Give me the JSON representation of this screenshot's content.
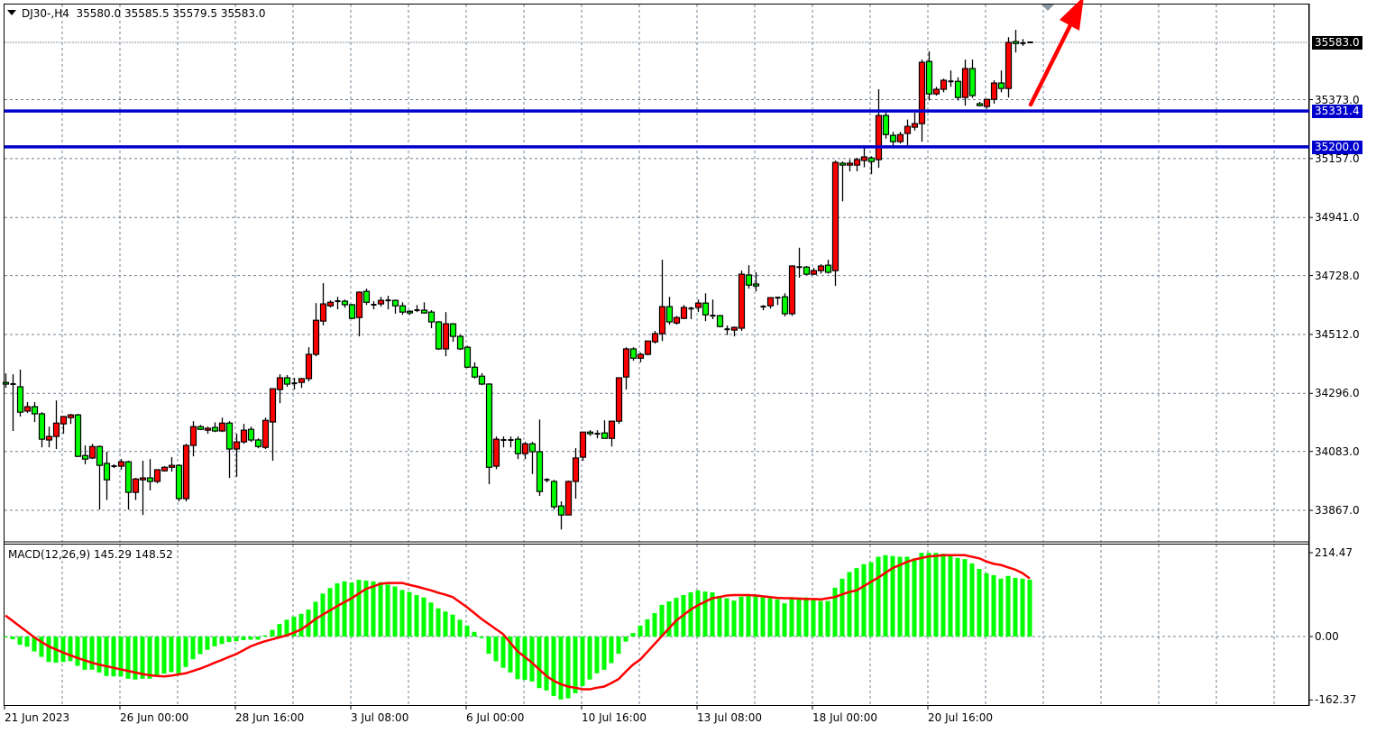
{
  "header": {
    "symbol": "DJ30-,H4",
    "open": "35580.0",
    "high": "35585.5",
    "low": "35579.5",
    "close": "35583.0"
  },
  "macd_label": {
    "name": "MACD(12,26,9)",
    "macd": "145.29",
    "signal": "148.52"
  },
  "colors": {
    "bull": "#FF0000",
    "bear": "#00FF00",
    "hline": "#0000CC",
    "signal": "#FF0000",
    "histogram": "#00FF00",
    "grid": "#708090",
    "arrow": "#FF0000"
  },
  "price_axis": [
    "35373.0",
    "35157.0",
    "34941.0",
    "34728.0",
    "34512.0",
    "34296.0",
    "34083.0",
    "33867.0"
  ],
  "bid_tag": "35583.0",
  "hlines": [
    {
      "value": 35331.4,
      "label": "35331.4"
    },
    {
      "value": 35200.0,
      "label": "35200.0"
    }
  ],
  "macd_axis": [
    "214.47",
    "0.00",
    "-162.37"
  ],
  "time_axis": [
    "21 Jun 2023",
    "26 Jun 00:00",
    "28 Jun 16:00",
    "3 Jul 08:00",
    "6 Jul 00:00",
    "10 Jul 16:00",
    "13 Jul 08:00",
    "18 Jul 00:00",
    "20 Jul 16:00"
  ],
  "chart_data": [
    {
      "type": "candlestick",
      "title": "DJ30-,H4",
      "timeframe": "H4",
      "ylim": [
        33755,
        35722
      ],
      "grid": true,
      "ohlc_format": [
        "open",
        "high",
        "low",
        "close"
      ],
      "candles": [
        [
          34336,
          34369,
          34316,
          34330
        ],
        [
          34330,
          34366,
          34158,
          34326
        ],
        [
          34320,
          34383,
          34211,
          34227
        ],
        [
          34231,
          34264,
          34224,
          34247
        ],
        [
          34247,
          34264,
          34191,
          34221
        ],
        [
          34221,
          34227,
          34098,
          34128
        ],
        [
          34125,
          34174,
          34098,
          34138
        ],
        [
          34138,
          34270,
          34092,
          34187
        ],
        [
          34184,
          34211,
          34148,
          34211
        ],
        [
          34207,
          34221,
          34184,
          34217
        ],
        [
          34217,
          34221,
          34062,
          34065
        ],
        [
          34068,
          34105,
          34036,
          34055
        ],
        [
          34059,
          34111,
          34055,
          34101
        ],
        [
          34101,
          34105,
          33870,
          34032
        ],
        [
          34039,
          34082,
          33905,
          33979
        ],
        [
          34029,
          34036,
          34022,
          34029
        ],
        [
          34029,
          34055,
          34016,
          34045
        ],
        [
          34045,
          34049,
          33870,
          33933
        ],
        [
          33933,
          33986,
          33905,
          33982
        ],
        [
          33979,
          34049,
          33850,
          33986
        ],
        [
          33986,
          34055,
          33940,
          33973
        ],
        [
          33973,
          34016,
          33966,
          34016
        ],
        [
          34012,
          34029,
          34009,
          34025
        ],
        [
          34025,
          34062,
          34009,
          34032
        ],
        [
          34032,
          34036,
          33900,
          33910
        ],
        [
          33910,
          34111,
          33900,
          34105
        ],
        [
          34105,
          34194,
          34065,
          34174
        ],
        [
          34174,
          34180,
          34161,
          34164
        ],
        [
          34161,
          34174,
          34148,
          34168
        ],
        [
          34171,
          34190,
          34154,
          34158
        ],
        [
          34158,
          34207,
          34154,
          34187
        ],
        [
          34187,
          34194,
          33986,
          34092
        ],
        [
          34092,
          34148,
          33990,
          34118
        ],
        [
          34118,
          34184,
          34111,
          34161
        ],
        [
          34164,
          34174,
          34118,
          34125
        ],
        [
          34125,
          34131,
          34095,
          34101
        ],
        [
          34098,
          34207,
          34092,
          34197
        ],
        [
          34191,
          34313,
          34049,
          34313
        ],
        [
          34310,
          34366,
          34260,
          34353
        ],
        [
          34353,
          34363,
          34320,
          34330
        ],
        [
          34333,
          34353,
          34310,
          34333
        ],
        [
          34336,
          34353,
          34316,
          34350
        ],
        [
          34350,
          34465,
          34340,
          34439
        ],
        [
          34439,
          34627,
          34432,
          34564
        ],
        [
          34561,
          34700,
          34545,
          34624
        ],
        [
          34617,
          34637,
          34611,
          34630
        ],
        [
          34634,
          34650,
          34604,
          34634
        ],
        [
          34634,
          34640,
          34610,
          34621
        ],
        [
          34621,
          34624,
          34568,
          34571
        ],
        [
          34574,
          34670,
          34505,
          34667
        ],
        [
          34670,
          34680,
          34620,
          34630
        ],
        [
          34621,
          34634,
          34604,
          34621
        ],
        [
          34624,
          34650,
          34614,
          34637
        ],
        [
          34637,
          34654,
          34604,
          34637
        ],
        [
          34637,
          34640,
          34588,
          34617
        ],
        [
          34617,
          34630,
          34584,
          34594
        ],
        [
          34597,
          34601,
          34584,
          34591
        ],
        [
          34601,
          34620,
          34594,
          34601
        ],
        [
          34601,
          34630,
          34588,
          34591
        ],
        [
          34594,
          34601,
          34535,
          34558
        ],
        [
          34558,
          34561,
          34455,
          34459
        ],
        [
          34459,
          34594,
          34432,
          34551
        ],
        [
          34551,
          34554,
          34485,
          34505
        ],
        [
          34505,
          34510,
          34455,
          34459
        ],
        [
          34465,
          34470,
          34389,
          34392
        ],
        [
          34392,
          34410,
          34350,
          34356
        ],
        [
          34359,
          34370,
          34326,
          34330
        ],
        [
          34330,
          34333,
          33963,
          34025
        ],
        [
          34029,
          34138,
          34018,
          34128
        ],
        [
          34125,
          34138,
          34098,
          34125
        ],
        [
          34125,
          34138,
          34098,
          34125
        ],
        [
          34128,
          34138,
          34055,
          34075
        ],
        [
          34075,
          34118,
          34055,
          34111
        ],
        [
          34111,
          34118,
          34000,
          34082
        ],
        [
          34082,
          34200,
          33920,
          33936
        ],
        [
          33979,
          33985,
          33970,
          33976
        ],
        [
          33973,
          33979,
          33870,
          33880
        ],
        [
          33883,
          33900,
          33797,
          33850
        ],
        [
          33850,
          33976,
          33850,
          33973
        ],
        [
          33973,
          34095,
          33910,
          34059
        ],
        [
          34062,
          34154,
          34049,
          34154
        ],
        [
          34154,
          34161,
          34140,
          34148
        ],
        [
          34148,
          34161,
          34131,
          34148
        ],
        [
          34151,
          34197,
          34131,
          34131
        ],
        [
          34131,
          34194,
          34101,
          34194
        ],
        [
          34194,
          34353,
          34184,
          34353
        ],
        [
          34356,
          34465,
          34310,
          34459
        ],
        [
          34459,
          34465,
          34416,
          34425
        ],
        [
          34425,
          34445,
          34410,
          34439
        ],
        [
          34439,
          34488,
          34435,
          34488
        ],
        [
          34485,
          34525,
          34478,
          34515
        ],
        [
          34515,
          34786,
          34488,
          34614
        ],
        [
          34614,
          34650,
          34548,
          34558
        ],
        [
          34554,
          34580,
          34548,
          34574
        ],
        [
          34571,
          34620,
          34568,
          34611
        ],
        [
          34607,
          34614,
          34568,
          34607
        ],
        [
          34611,
          34640,
          34594,
          34627
        ],
        [
          34627,
          34663,
          34561,
          34584
        ],
        [
          34581,
          34640,
          34568,
          34581
        ],
        [
          34581,
          34584,
          34538,
          34541
        ],
        [
          34531,
          34545,
          34510,
          34531
        ],
        [
          34528,
          34541,
          34505,
          34538
        ],
        [
          34535,
          34746,
          34525,
          34733
        ],
        [
          34730,
          34766,
          34680,
          34693
        ],
        [
          34697,
          34740,
          34670,
          34690
        ],
        [
          34614,
          34620,
          34601,
          34614
        ],
        [
          34617,
          34640,
          34607,
          34647
        ],
        [
          34647,
          34650,
          34620,
          34647
        ],
        [
          34650,
          34663,
          34578,
          34588
        ],
        [
          34588,
          34766,
          34580,
          34763
        ],
        [
          34759,
          34830,
          34720,
          34759
        ],
        [
          34759,
          34763,
          34730,
          34733
        ],
        [
          34733,
          34756,
          34730,
          34746
        ],
        [
          34746,
          34770,
          34735,
          34763
        ],
        [
          34766,
          34786,
          34735,
          34740
        ],
        [
          34746,
          35150,
          34690,
          35143
        ],
        [
          35140,
          35146,
          35000,
          35133
        ],
        [
          35133,
          35153,
          35110,
          35140
        ],
        [
          35133,
          35160,
          35110,
          35153
        ],
        [
          35150,
          35196,
          35125,
          35163
        ],
        [
          35159,
          35165,
          35100,
          35146
        ],
        [
          35153,
          35411,
          35123,
          35315
        ],
        [
          35315,
          35325,
          35230,
          35245
        ],
        [
          35242,
          35255,
          35205,
          35219
        ],
        [
          35219,
          35255,
          35212,
          35245
        ],
        [
          35249,
          35300,
          35200,
          35275
        ],
        [
          35272,
          35325,
          35260,
          35285
        ],
        [
          35285,
          35520,
          35219,
          35510
        ],
        [
          35513,
          35550,
          35370,
          35394
        ],
        [
          35394,
          35420,
          35388,
          35411
        ],
        [
          35411,
          35450,
          35400,
          35444
        ],
        [
          35440,
          35480,
          35420,
          35440
        ],
        [
          35440,
          35455,
          35370,
          35381
        ],
        [
          35381,
          35520,
          35351,
          35487
        ],
        [
          35487,
          35520,
          35380,
          35388
        ],
        [
          35358,
          35365,
          35348,
          35351
        ],
        [
          35348,
          35374,
          35340,
          35374
        ],
        [
          35374,
          35444,
          35358,
          35434
        ],
        [
          35434,
          35480,
          35400,
          35414
        ],
        [
          35414,
          35602,
          35381,
          35583
        ],
        [
          35586,
          35629,
          35546,
          35579
        ],
        [
          35580,
          35595,
          35570,
          35580
        ],
        [
          35580.0,
          35585.5,
          35579.5,
          35583.0
        ]
      ],
      "horizontal_levels": [
        35331.4,
        35200.0
      ],
      "bid": 35583.0
    },
    {
      "type": "bar+line",
      "title": "MACD(12,26,9)",
      "ylim": [
        -162.37,
        214.47
      ],
      "histogram": [
        -2,
        -7,
        -21,
        -26,
        -38,
        -52,
        -65,
        -67,
        -65,
        -63,
        -75,
        -85,
        -85,
        -92,
        -101,
        -102,
        -102,
        -108,
        -110,
        -108,
        -108,
        -100,
        -95,
        -91,
        -94,
        -78,
        -58,
        -45,
        -34,
        -25,
        -19,
        -14,
        -12,
        -9,
        -8,
        -8,
        3,
        17,
        32,
        43,
        51,
        58,
        69,
        89,
        110,
        124,
        136,
        141,
        138,
        145,
        143,
        141,
        139,
        133,
        128,
        119,
        114,
        106,
        100,
        87,
        72,
        64,
        56,
        43,
        28,
        12,
        -4,
        -44,
        -63,
        -80,
        -92,
        -109,
        -111,
        -115,
        -132,
        -138,
        -152,
        -161,
        -158,
        -145,
        -127,
        -110,
        -94,
        -85,
        -68,
        -44,
        -13,
        9,
        28,
        44,
        60,
        81,
        90,
        99,
        106,
        113,
        118,
        115,
        113,
        104,
        98,
        92,
        102,
        106,
        106,
        100,
        98,
        95,
        85,
        98,
        100,
        100,
        98,
        91,
        91,
        125,
        148,
        165,
        175,
        185,
        190,
        204,
        208,
        206,
        204,
        204,
        200,
        214,
        214,
        214,
        212,
        206,
        201,
        198,
        187,
        173,
        162,
        157,
        148,
        155,
        150,
        148,
        145.29
      ],
      "signal": [
        54,
        40,
        26,
        12,
        -2,
        -14,
        -25,
        -33,
        -41,
        -48,
        -55,
        -61,
        -67,
        -72,
        -76,
        -80,
        -84,
        -88,
        -92,
        -96,
        -99,
        -101,
        -102,
        -100,
        -97,
        -94,
        -88,
        -82,
        -75,
        -67,
        -60,
        -52,
        -45,
        -35,
        -25,
        -18,
        -12,
        -7,
        -2,
        3,
        10,
        18,
        31,
        45,
        56,
        67,
        78,
        88,
        98,
        110,
        122,
        128,
        135,
        137,
        137,
        137,
        132,
        128,
        123,
        118,
        112,
        107,
        101,
        88,
        75,
        60,
        45,
        32,
        19,
        6,
        -16,
        -38,
        -52,
        -67,
        -84,
        -101,
        -113,
        -122,
        -128,
        -131,
        -135,
        -135,
        -131,
        -128,
        -119,
        -109,
        -90,
        -72,
        -59,
        -39,
        -19,
        1,
        21,
        41,
        55,
        69,
        80,
        89,
        98,
        101,
        105,
        106,
        106,
        106,
        105,
        103,
        101,
        99,
        98,
        98,
        97,
        96,
        96,
        95,
        98,
        101,
        108,
        114,
        118,
        129,
        140,
        151,
        163,
        175,
        183,
        191,
        197,
        201,
        205,
        206,
        208,
        208,
        208,
        208,
        204,
        200,
        192,
        186,
        183,
        177,
        171,
        162,
        148.52
      ]
    }
  ]
}
